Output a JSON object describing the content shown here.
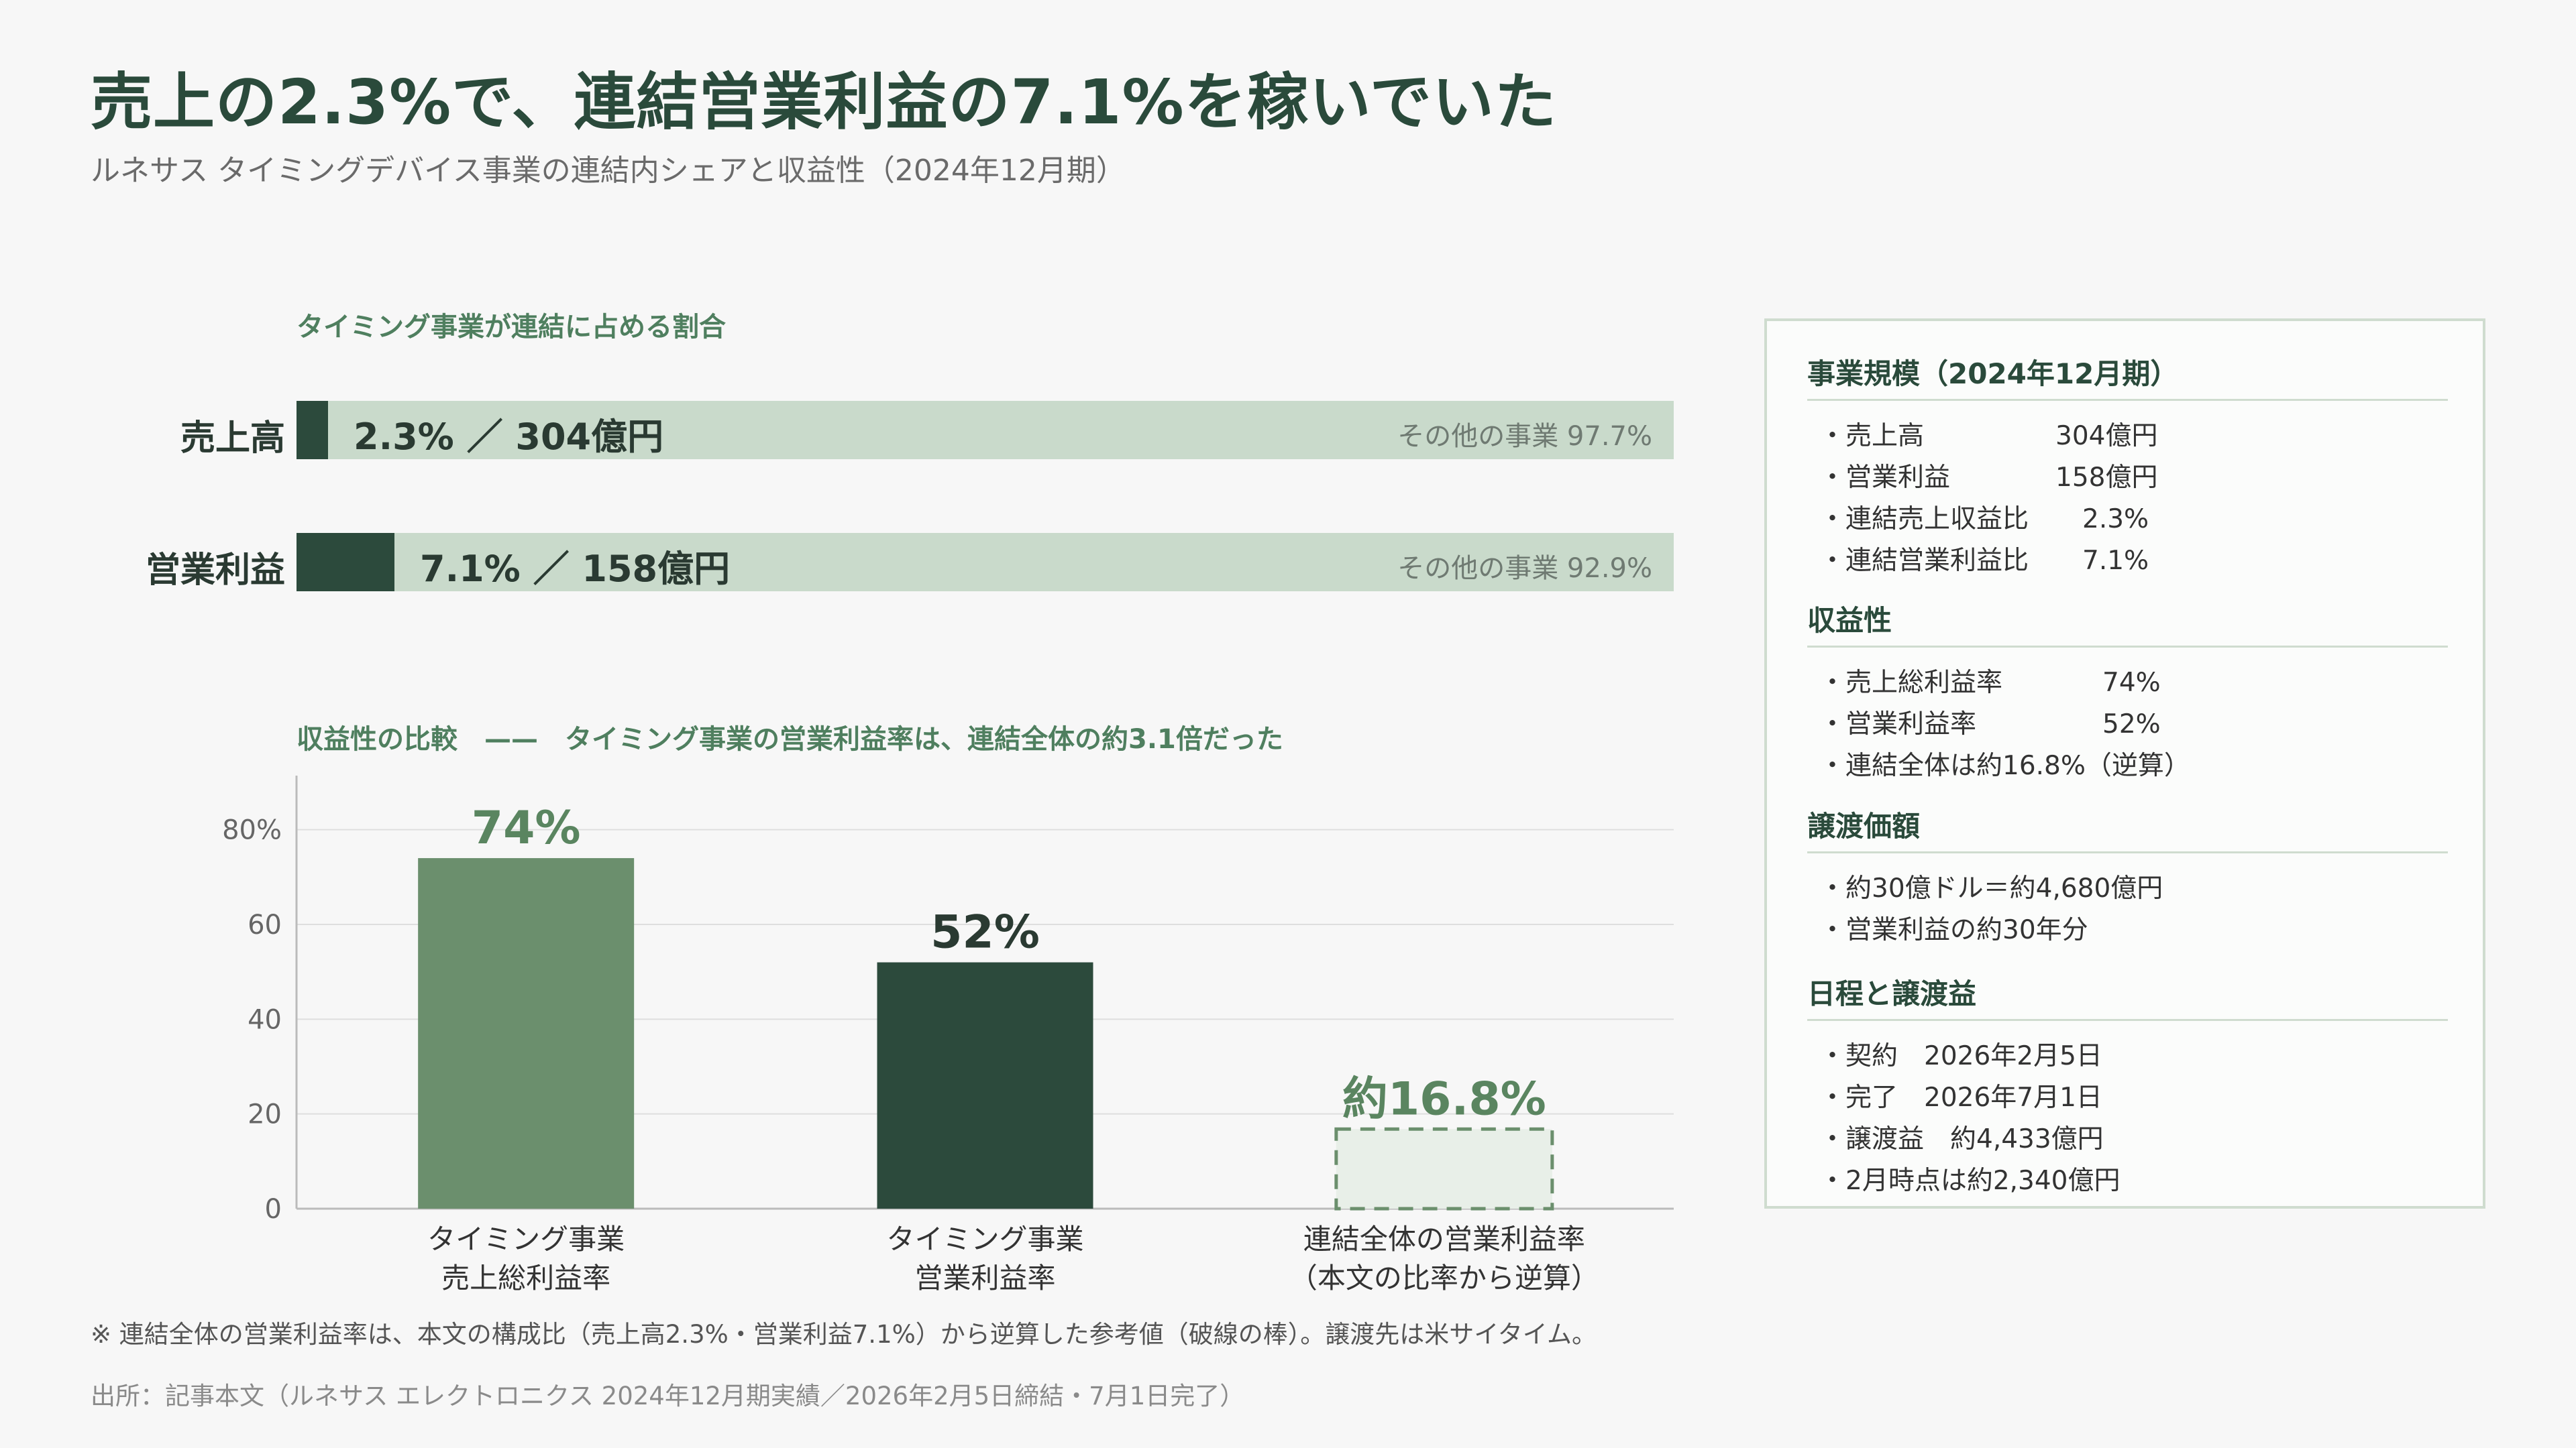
{
  "header": {
    "title": "売上の2.3%で、連結営業利益の7.1%を稼いでいた",
    "subtitle": "ルネサス タイミングデバイス事業の連結内シェアと収益性（2024年12月期）"
  },
  "share_section": {
    "heading": "タイミング事業が連結に占める割合",
    "rows": [
      {
        "label": "売上高",
        "share_pct": 2.3,
        "value_text": "2.3% ／ 304億円",
        "other_text": "その他の事業  97.7%"
      },
      {
        "label": "営業利益",
        "share_pct": 7.1,
        "value_text": "7.1% ／ 158億円",
        "other_text": "その他の事業  92.9%"
      }
    ]
  },
  "profit_section": {
    "heading": "収益性の比較　——　タイミング事業の営業利益率は、連結全体の約3.1倍だった"
  },
  "chart_data": [
    {
      "type": "bar",
      "title": "タイミング事業が連結に占める割合",
      "categories": [
        "売上高",
        "営業利益"
      ],
      "series": [
        {
          "name": "タイミング事業",
          "values": [
            2.3,
            7.1
          ]
        },
        {
          "name": "その他の事業",
          "values": [
            97.7,
            92.9
          ]
        }
      ],
      "orientation": "horizontal",
      "stacked": true
    },
    {
      "type": "bar",
      "title": "収益性の比較",
      "categories": [
        [
          "タイミング事業",
          "売上総利益率"
        ],
        [
          "タイミング事業",
          "営業利益率"
        ],
        [
          "連結全体の営業利益率",
          "（本文の比率から逆算）"
        ]
      ],
      "values": [
        74,
        52,
        16.8
      ],
      "data_labels": [
        "74%",
        "52%",
        "約16.8%"
      ],
      "colors": [
        "#6b8f6d",
        "#2c4a3c",
        "#e8efe8"
      ],
      "ylim": [
        0,
        90
      ],
      "yticks": [
        0,
        20,
        40,
        60,
        80
      ],
      "ytick_labels": [
        "0",
        "20",
        "40",
        "60",
        "80%"
      ],
      "grid": true
    }
  ],
  "side_panel": {
    "sections": [
      {
        "title": "事業規模（2024年12月期）",
        "items": [
          {
            "key": "・売上高",
            "value": "304億円"
          },
          {
            "key": "・営業利益",
            "value": "158億円"
          },
          {
            "key": "・連結売上収益比",
            "value": "2.3%"
          },
          {
            "key": "・連結営業利益比",
            "value": "7.1%"
          }
        ]
      },
      {
        "title": "収益性",
        "items": [
          {
            "key": "・売上総利益率",
            "value": "74%"
          },
          {
            "key": "・営業利益率",
            "value": "52%"
          },
          {
            "key": "・連結全体は約16.8%（逆算）",
            "value": ""
          }
        ]
      },
      {
        "title": "譲渡価額",
        "items": [
          {
            "key": "・約30億ドル＝約4,680億円",
            "value": ""
          },
          {
            "key": "・営業利益の約30年分",
            "value": ""
          }
        ]
      },
      {
        "title": "日程と譲渡益",
        "items": [
          {
            "key": "・契約　2026年2月5日",
            "value": ""
          },
          {
            "key": "・完了　2026年7月1日",
            "value": ""
          },
          {
            "key": "・譲渡益　約4,433億円",
            "value": ""
          },
          {
            "key": "・2月時点は約2,340億円",
            "value": ""
          }
        ]
      }
    ]
  },
  "footer": {
    "note": "※ 連結全体の営業利益率は、本文の構成比（売上高2.3%・営業利益7.1%）から逆算した参考値（破線の棒）。譲渡先は米サイタイム。",
    "source": "出所：記事本文（ルネサス エレクトロニクス 2024年12月期実績／2026年2月5日締結・7月1日完了）"
  }
}
